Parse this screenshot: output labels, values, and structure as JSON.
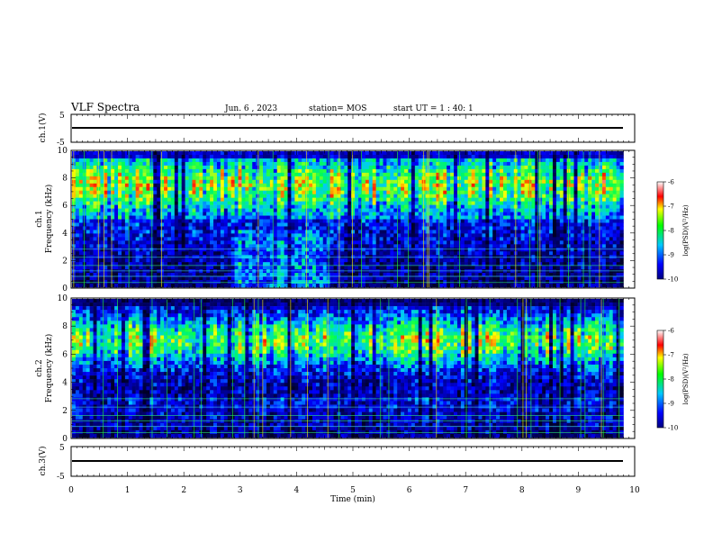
{
  "header": {
    "title": "VLF Spectra",
    "date": "Jun. 6 , 2023",
    "station": "station= MOS",
    "start_ut": "start  UT =   1 : 40: 1"
  },
  "chart_data": {
    "type": "heatmap",
    "xlabel": "Time  (min)",
    "xlim": [
      0,
      10
    ],
    "x_ticks": [
      "0",
      "1",
      "2",
      "3",
      "4",
      "5",
      "6",
      "7",
      "8",
      "9",
      "10"
    ],
    "panels": [
      {
        "name": "ch1-voltage",
        "type": "line",
        "ylabel": "ch.1(V)",
        "ylim": [
          -5,
          5
        ],
        "y_ticks": [
          "5",
          "-5"
        ],
        "x": [
          0,
          9.8
        ],
        "y": [
          0,
          0
        ]
      },
      {
        "name": "ch1-spectrogram",
        "type": "heatmap",
        "ylabel_line1": "ch.1",
        "ylabel_line2": "Frequency (kHz)",
        "ylim": [
          0,
          10
        ],
        "y_ticks": [
          "0",
          "2",
          "4",
          "6",
          "8",
          "10"
        ],
        "data_xlim": [
          0,
          9.8
        ],
        "colorbar": {
          "label": "log(PSD)(V²/Hz)",
          "range": [
            -10,
            -6
          ],
          "ticks": [
            "-6",
            "-7",
            "-8",
            "-9",
            "-10"
          ]
        }
      },
      {
        "name": "ch2-spectrogram",
        "type": "heatmap",
        "ylabel_line1": "ch.2",
        "ylabel_line2": "Frequency (kHz)",
        "ylim": [
          0,
          10
        ],
        "y_ticks": [
          "0",
          "2",
          "4",
          "6",
          "8",
          "10"
        ],
        "data_xlim": [
          0,
          9.8
        ],
        "colorbar": {
          "label": "log(PSD)(V²/Hz)",
          "range": [
            -10,
            -6
          ],
          "ticks": [
            "-6",
            "-7",
            "-8",
            "-9",
            "-10"
          ]
        }
      },
      {
        "name": "ch3-voltage",
        "type": "line",
        "ylabel": "ch.3(V)",
        "ylim": [
          -5,
          5
        ],
        "y_ticks": [
          "5",
          "-5"
        ],
        "x": [
          0,
          9.8
        ],
        "y": [
          0,
          0
        ]
      }
    ]
  }
}
